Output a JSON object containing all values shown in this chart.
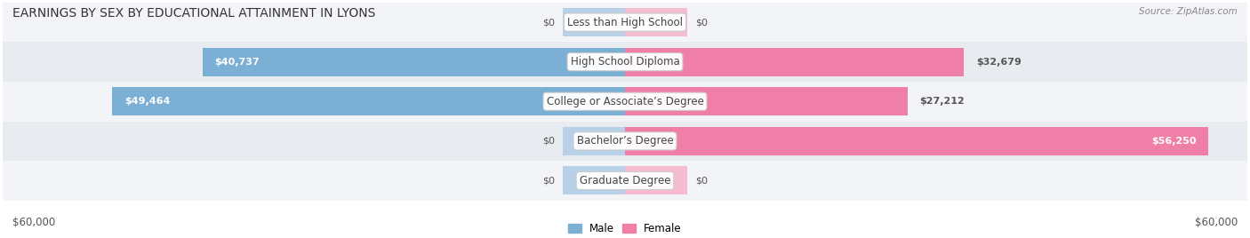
{
  "title": "EARNINGS BY SEX BY EDUCATIONAL ATTAINMENT IN LYONS",
  "source": "Source: ZipAtlas.com",
  "categories": [
    "Less than High School",
    "High School Diploma",
    "College or Associate’s Degree",
    "Bachelor’s Degree",
    "Graduate Degree"
  ],
  "male_values": [
    0,
    40737,
    49464,
    0,
    0
  ],
  "female_values": [
    0,
    32679,
    27212,
    56250,
    0
  ],
  "male_color": "#7bafd4",
  "female_color": "#f07fa8",
  "male_color_light": "#b8d0e8",
  "female_color_light": "#f5bcd0",
  "row_bg_even": "#f2f4f7",
  "row_bg_odd": "#e8ecf0",
  "max_value": 60000,
  "stub_size": 6000,
  "xlabel_left": "$60,000",
  "xlabel_right": "$60,000",
  "legend_male": "Male",
  "legend_female": "Female",
  "title_fontsize": 10,
  "label_fontsize": 8.5,
  "value_fontsize": 8,
  "axis_label_fontsize": 8.5
}
